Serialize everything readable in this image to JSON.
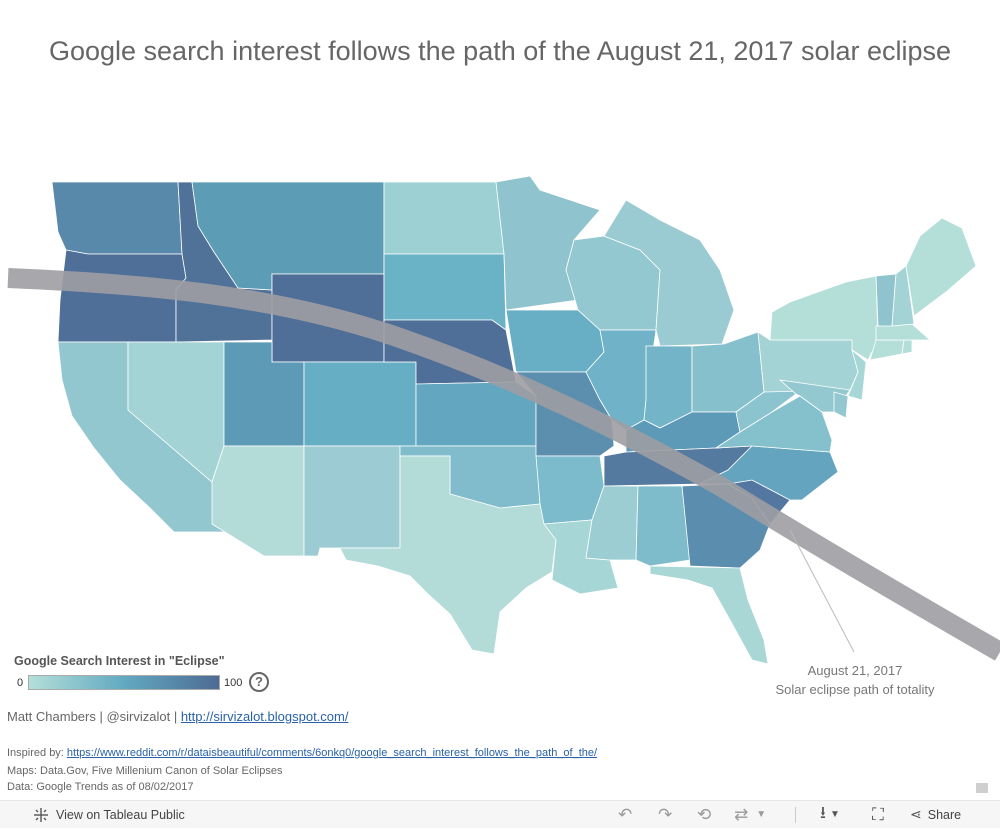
{
  "title": "Google search interest follows the path of the August 21, 2017 solar eclipse",
  "legend": {
    "title": "Google Search Interest in \"Eclipse\"",
    "min_label": "0",
    "max_label": "100",
    "help_label": "?",
    "color_low": "#b4dfd9",
    "color_mid": "#62a9c0",
    "color_high": "#4d6b94"
  },
  "eclipse_path": {
    "line1": "August 21, 2017",
    "line2": "Solar eclipse path of totality",
    "color": "#9d9da3"
  },
  "credits": {
    "author": "Matt Chambers | @sirvizalot | ",
    "blog_link": "http://sirvizalot.blogspot.com/",
    "inspired_label": "Inspired by: ",
    "inspired_link": "https://www.reddit.com/r/dataisbeautiful/comments/6onkq0/google_search_interest_follows_the_path_of_the/",
    "maps": "Maps: Data.Gov, Five Millenium Canon of Solar Eclipses",
    "data": "Data: Google Trends as of 08/02/2017"
  },
  "toolbar": {
    "view_label": "View on Tableau Public",
    "share_label": "Share",
    "icons": [
      "tableau-logo-icon",
      "undo-icon",
      "redo-icon",
      "revert-icon",
      "refresh-icon",
      "download-icon",
      "fullscreen-icon",
      "share-icon"
    ]
  },
  "chart_data": {
    "type": "choropleth map",
    "legend_range": [
      0,
      100
    ],
    "states": [
      {
        "name": "Washington",
        "color": "#5889ab"
      },
      {
        "name": "Oregon",
        "color": "#4f6f98"
      },
      {
        "name": "Idaho",
        "color": "#507298"
      },
      {
        "name": "Montana",
        "color": "#5d9cb5"
      },
      {
        "name": "Wyoming",
        "color": "#4f6f98"
      },
      {
        "name": "Nebraska",
        "color": "#4f6f98"
      },
      {
        "name": "California",
        "color": "#93c7d0"
      },
      {
        "name": "Nevada",
        "color": "#a3d3d5"
      },
      {
        "name": "Utah",
        "color": "#5c9ab6"
      },
      {
        "name": "Colorado",
        "color": "#65aec4"
      },
      {
        "name": "Arizona",
        "color": "#b3dcd8"
      },
      {
        "name": "New Mexico",
        "color": "#9dcbd3"
      },
      {
        "name": "North Dakota",
        "color": "#9dd0d3"
      },
      {
        "name": "South Dakota",
        "color": "#6ab2c6"
      },
      {
        "name": "Kansas",
        "color": "#62a6c0"
      },
      {
        "name": "Oklahoma",
        "color": "#80bccb"
      },
      {
        "name": "Texas",
        "color": "#b3dcd8"
      },
      {
        "name": "Minnesota",
        "color": "#8fc4ce"
      },
      {
        "name": "Iowa",
        "color": "#68afc5"
      },
      {
        "name": "Missouri",
        "color": "#5c8eae"
      },
      {
        "name": "Arkansas",
        "color": "#7bbbcc"
      },
      {
        "name": "Louisiana",
        "color": "#a7d6d6"
      },
      {
        "name": "Wisconsin",
        "color": "#93c8d0"
      },
      {
        "name": "Illinois",
        "color": "#70b3c8"
      },
      {
        "name": "Michigan",
        "color": "#9acbd3"
      },
      {
        "name": "Indiana",
        "color": "#74b4c8"
      },
      {
        "name": "Ohio",
        "color": "#87c0cd"
      },
      {
        "name": "Kentucky",
        "color": "#5d9ab7"
      },
      {
        "name": "Tennessee",
        "color": "#547aa0"
      },
      {
        "name": "Mississippi",
        "color": "#9ccdd3"
      },
      {
        "name": "Alabama",
        "color": "#7ebccb"
      },
      {
        "name": "Georgia",
        "color": "#5a8dae"
      },
      {
        "name": "Florida",
        "color": "#a9d7d6"
      },
      {
        "name": "South Carolina",
        "color": "#5377a0"
      },
      {
        "name": "North Carolina",
        "color": "#64a4be"
      },
      {
        "name": "Virginia",
        "color": "#85c0cd"
      },
      {
        "name": "West Virginia",
        "color": "#8bc3cf"
      },
      {
        "name": "Pennsylvania",
        "color": "#a3d3d5"
      },
      {
        "name": "New York",
        "color": "#b4dfd9"
      },
      {
        "name": "Maryland",
        "color": "#93c8d0"
      },
      {
        "name": "Delaware",
        "color": "#93c8d0"
      },
      {
        "name": "New Jersey",
        "color": "#a7d6d6"
      },
      {
        "name": "Connecticut",
        "color": "#b4dfd9"
      },
      {
        "name": "Rhode Island",
        "color": "#b4dfd9"
      },
      {
        "name": "Massachusetts",
        "color": "#b4dfd9"
      },
      {
        "name": "Vermont",
        "color": "#8fc4ce"
      },
      {
        "name": "New Hampshire",
        "color": "#a3d3d5"
      },
      {
        "name": "Maine",
        "color": "#b4dfd9"
      }
    ]
  }
}
